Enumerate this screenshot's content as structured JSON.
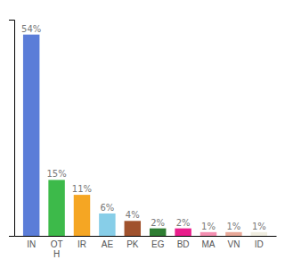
{
  "chart_data": {
    "type": "bar",
    "categories": [
      "IN",
      "OT\nH",
      "IR",
      "AE",
      "PK",
      "EG",
      "BD",
      "MA",
      "VN",
      "ID"
    ],
    "values": [
      54,
      15,
      11,
      6,
      4,
      2,
      2,
      1,
      1,
      1
    ],
    "value_labels": [
      "54%",
      "15%",
      "11%",
      "6%",
      "4%",
      "2%",
      "2%",
      "1%",
      "1%",
      "1%"
    ],
    "colors": [
      "#5b7dd8",
      "#3dba4a",
      "#f5a623",
      "#87cee8",
      "#a0522d",
      "#2e7d32",
      "#e91e8c",
      "#f48fb1",
      "#e8a898",
      "#f0ede0"
    ],
    "ylim": [
      0,
      58
    ],
    "data_labels": true,
    "tick_labels": "x",
    "grid": false
  }
}
